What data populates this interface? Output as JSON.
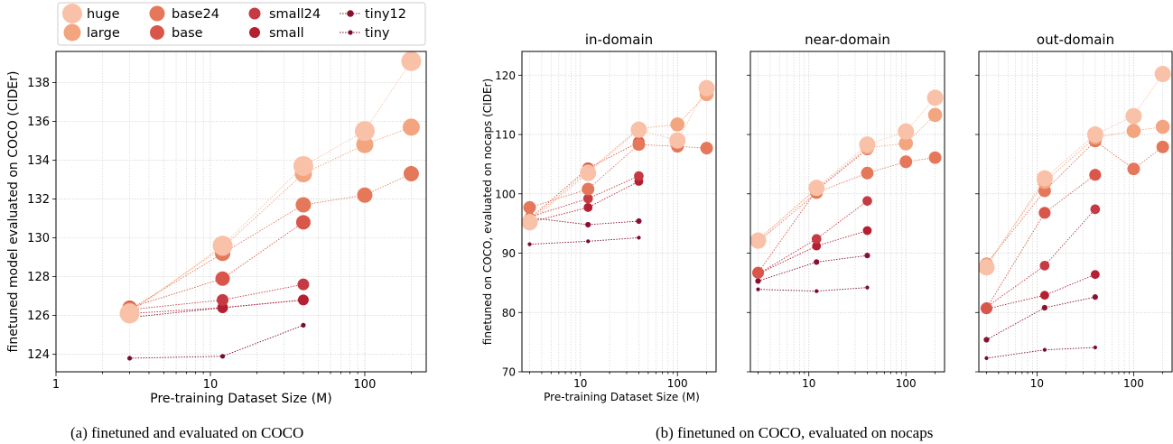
{
  "legend": [
    {
      "name": "huge",
      "color": "#f9c1a7",
      "size": 11
    },
    {
      "name": "large",
      "color": "#f2a57f",
      "size": 9.5
    },
    {
      "name": "base24",
      "color": "#e5785a",
      "size": 8.5
    },
    {
      "name": "base",
      "color": "#d9574a",
      "size": 8
    },
    {
      "name": "small24",
      "color": "#c63a43",
      "size": 6.5
    },
    {
      "name": "small",
      "color": "#b41f32",
      "size": 6
    },
    {
      "name": "tiny12",
      "color": "#8a1030",
      "size": 3.8
    },
    {
      "name": "tiny",
      "color": "#7a0c2e",
      "size": 2.6
    }
  ],
  "captions": {
    "a": "(a) finetuned and evaluated on COCO",
    "b": "(b) finetuned on COCO, evaluated on nocaps"
  },
  "chart_data": [
    {
      "type": "scatter",
      "xscale": "log",
      "xlim": [
        1,
        250
      ],
      "ylim": [
        123.1,
        139.6
      ],
      "xticks": [
        1,
        10,
        100
      ],
      "yticks": [
        124,
        126,
        128,
        130,
        132,
        134,
        136,
        138
      ],
      "xlabel": "Pre-training Dataset Size (M)",
      "ylabel": "finetuned model evaluated on COCO (CIDEr)",
      "title": "",
      "grid": true,
      "series": [
        {
          "name": "huge",
          "x": [
            3,
            12,
            40,
            100,
            200
          ],
          "y": [
            126.1,
            129.6,
            133.7,
            135.5,
            139.1
          ]
        },
        {
          "name": "large",
          "x": [
            3,
            12,
            40,
            100,
            200
          ],
          "y": [
            126.2,
            129.5,
            133.3,
            134.8,
            135.7
          ]
        },
        {
          "name": "base24",
          "x": [
            3,
            12,
            40,
            100,
            200
          ],
          "y": [
            126.3,
            129.2,
            131.7,
            132.2,
            133.3
          ]
        },
        {
          "name": "base",
          "x": [
            3,
            12,
            40
          ],
          "y": [
            126.4,
            127.9,
            130.8
          ]
        },
        {
          "name": "small24",
          "x": [
            3,
            12,
            40
          ],
          "y": [
            126.3,
            126.8,
            127.6
          ]
        },
        {
          "name": "small",
          "x": [
            3,
            12,
            40
          ],
          "y": [
            126.1,
            126.4,
            126.8
          ]
        },
        {
          "name": "tiny12",
          "x": [
            3,
            12,
            40
          ],
          "y": [
            125.9,
            126.4,
            126.8
          ]
        },
        {
          "name": "tiny",
          "x": [
            3,
            12,
            40
          ],
          "y": [
            123.8,
            123.9,
            125.5
          ]
        }
      ]
    },
    {
      "type": "scatter",
      "title": "in-domain",
      "xscale": "log",
      "xlim": [
        2.5,
        250
      ],
      "ylim": [
        70,
        124
      ],
      "xticks": [
        10,
        100
      ],
      "yticks": [
        70,
        80,
        90,
        100,
        110,
        120
      ],
      "xlabel": "Pre-training Dataset Size (M)",
      "ylabel": "finetuned on COCO, evaluated on nocaps (CIDEr)",
      "grid": true,
      "series": [
        {
          "name": "huge",
          "x": [
            3,
            12,
            40,
            100,
            200
          ],
          "y": [
            95.2,
            103.5,
            110.8,
            109.0,
            117.8
          ]
        },
        {
          "name": "large",
          "x": [
            3,
            12,
            40,
            100,
            200
          ],
          "y": [
            95.5,
            103.8,
            111.0,
            111.7,
            116.8
          ]
        },
        {
          "name": "base24",
          "x": [
            3,
            12,
            40,
            100,
            200
          ],
          "y": [
            97.7,
            100.8,
            108.3,
            108.0,
            107.7
          ]
        },
        {
          "name": "base",
          "x": [
            3,
            12,
            40
          ],
          "y": [
            95.8,
            104.3,
            108.7
          ]
        },
        {
          "name": "small24",
          "x": [
            3,
            12,
            40
          ],
          "y": [
            96.1,
            99.2,
            103.0
          ]
        },
        {
          "name": "small",
          "x": [
            3,
            12,
            40
          ],
          "y": [
            95.2,
            97.7,
            102.1
          ]
        },
        {
          "name": "tiny12",
          "x": [
            3,
            12,
            40
          ],
          "y": [
            96.0,
            94.8,
            95.4
          ]
        },
        {
          "name": "tiny",
          "x": [
            3,
            12,
            40
          ],
          "y": [
            91.5,
            92.0,
            92.6
          ]
        }
      ]
    },
    {
      "type": "scatter",
      "title": "near-domain",
      "xscale": "log",
      "xlim": [
        2.5,
        250
      ],
      "ylim": [
        70,
        124
      ],
      "xticks": [
        10,
        100
      ],
      "yticks": [
        70,
        80,
        90,
        100,
        110,
        120
      ],
      "xlabel": "",
      "ylabel": "",
      "grid": true,
      "series": [
        {
          "name": "huge",
          "x": [
            3,
            12,
            40,
            100,
            200
          ],
          "y": [
            92.1,
            101.0,
            108.3,
            110.5,
            116.2
          ]
        },
        {
          "name": "large",
          "x": [
            3,
            12,
            40,
            100,
            200
          ],
          "y": [
            92.3,
            100.8,
            107.8,
            108.5,
            113.3
          ]
        },
        {
          "name": "base24",
          "x": [
            3,
            12,
            40,
            100,
            200
          ],
          "y": [
            91.9,
            100.2,
            103.5,
            105.4,
            106.1
          ]
        },
        {
          "name": "base",
          "x": [
            3,
            12,
            40
          ],
          "y": [
            86.7,
            100.6,
            107.5
          ]
        },
        {
          "name": "small24",
          "x": [
            3,
            12,
            40
          ],
          "y": [
            86.5,
            92.4,
            98.8
          ]
        },
        {
          "name": "small",
          "x": [
            3,
            12,
            40
          ],
          "y": [
            86.5,
            91.2,
            93.8
          ]
        },
        {
          "name": "tiny12",
          "x": [
            3,
            12,
            40
          ],
          "y": [
            85.3,
            88.5,
            89.6
          ]
        },
        {
          "name": "tiny",
          "x": [
            3,
            12,
            40
          ],
          "y": [
            83.9,
            83.6,
            84.2
          ]
        }
      ]
    },
    {
      "type": "scatter",
      "title": "out-domain",
      "xscale": "log",
      "xlim": [
        2.5,
        250
      ],
      "ylim": [
        70,
        124
      ],
      "xticks": [
        10,
        100
      ],
      "yticks": [
        70,
        80,
        90,
        100,
        110,
        120
      ],
      "xlabel": "",
      "ylabel": "",
      "grid": true,
      "series": [
        {
          "name": "huge",
          "x": [
            3,
            12,
            40,
            100,
            200
          ],
          "y": [
            87.6,
            102.6,
            110.0,
            113.1,
            120.2
          ]
        },
        {
          "name": "large",
          "x": [
            3,
            12,
            40,
            100,
            200
          ],
          "y": [
            88.0,
            102.0,
            109.5,
            110.6,
            111.3
          ]
        },
        {
          "name": "base24",
          "x": [
            3,
            12,
            40,
            100,
            200
          ],
          "y": [
            88.2,
            100.5,
            108.9,
            104.2,
            107.9
          ]
        },
        {
          "name": "base",
          "x": [
            3,
            12,
            40
          ],
          "y": [
            80.7,
            96.8,
            103.2
          ]
        },
        {
          "name": "small24",
          "x": [
            3,
            12,
            40
          ],
          "y": [
            80.9,
            87.9,
            97.4
          ]
        },
        {
          "name": "small",
          "x": [
            3,
            12,
            40
          ],
          "y": [
            80.6,
            82.9,
            86.4
          ]
        },
        {
          "name": "tiny12",
          "x": [
            3,
            12,
            40
          ],
          "y": [
            75.4,
            80.8,
            82.6
          ]
        },
        {
          "name": "tiny",
          "x": [
            3,
            12,
            40
          ],
          "y": [
            72.3,
            73.7,
            74.1
          ]
        }
      ]
    }
  ]
}
